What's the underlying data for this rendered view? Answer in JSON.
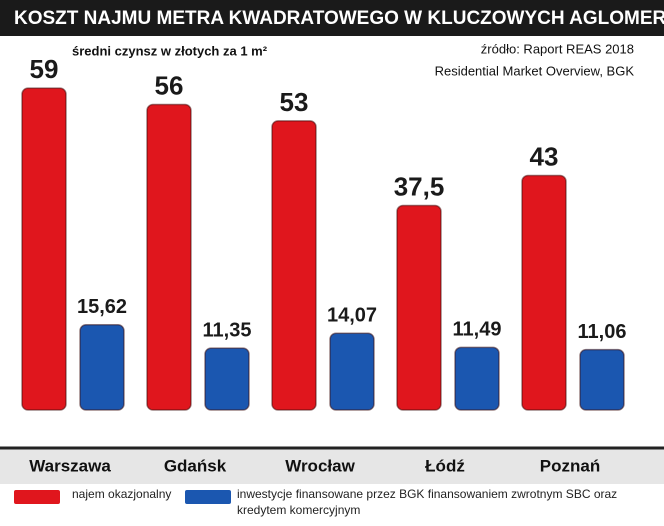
{
  "chart_data": {
    "type": "bar",
    "title": "KOSZT NAJMU METRA KWADRATOWEGO W KLUCZOWYCH AGLOMERACJACH",
    "subtitle": "średni czynsz w złotych  za 1 m²",
    "source": [
      "źródło: Raport REAS 2018",
      "Residential Market Overview, BGK"
    ],
    "categories": [
      "Warszawa",
      "Gdańsk",
      "Wrocław",
      "Łódź",
      "Poznań"
    ],
    "series": [
      {
        "name": "najem okazjonalny",
        "color": "#e0161d",
        "values": [
          59,
          56,
          53,
          37.5,
          43
        ],
        "value_labels": [
          "59",
          "56",
          "53",
          "37,5",
          "43"
        ]
      },
      {
        "name": "inwestycje finansowane przez BGK finansowaniem zwrotnym SBC oraz kredytem komercyjnym",
        "color": "#1b57b0",
        "values": [
          15.62,
          11.35,
          14.07,
          11.49,
          11.06
        ],
        "value_labels": [
          "15,62",
          "11,35",
          "14,07",
          "11,49",
          "11,06"
        ]
      }
    ],
    "ylim": [
      0,
      66
    ]
  }
}
